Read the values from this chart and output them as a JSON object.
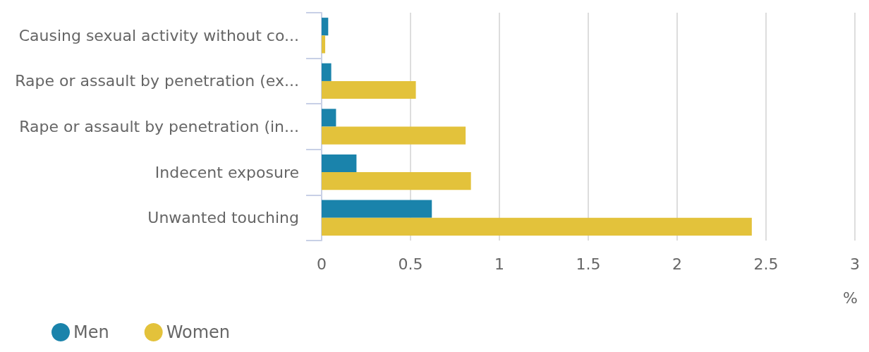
{
  "chart_data": {
    "type": "bar",
    "orientation": "horizontal",
    "xlabel": "%",
    "categories": [
      "Causing sexual activity without co...",
      "Rape or assault by penetration (ex...",
      "Rape or assault by penetration (in...",
      "Indecent exposure",
      "Unwanted touching"
    ],
    "series": [
      {
        "name": "Men",
        "color": "#1a83ab",
        "values": [
          0.037,
          0.054,
          0.081,
          0.196,
          0.62
        ]
      },
      {
        "name": "Women",
        "color": "#e3c23b",
        "values": [
          0.02,
          0.53,
          0.81,
          0.84,
          2.42
        ]
      }
    ],
    "xlim": [
      0,
      3
    ],
    "xticks": [
      0,
      0.5,
      1,
      1.5,
      2,
      2.5,
      3
    ],
    "grid": "x",
    "legend": "bottom left"
  }
}
